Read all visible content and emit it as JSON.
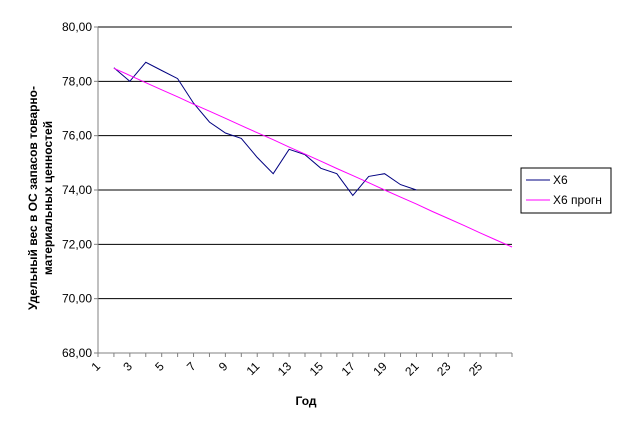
{
  "chart_data": {
    "type": "line",
    "title": "",
    "xlabel": "Год",
    "ylabel": "Удельный вес в ОС запасов товарно-материальных ценностей",
    "ylabel_lines": [
      "Удельный вес в ОС запасов товарно-",
      "материальных ценностей"
    ],
    "xlim": [
      1,
      27
    ],
    "ylim": [
      68,
      80
    ],
    "y_ticks": [
      "68,00",
      "70,00",
      "72,00",
      "74,00",
      "76,00",
      "78,00",
      "80,00"
    ],
    "x_tick_labels": [
      "1",
      "3",
      "5",
      "7",
      "9",
      "11",
      "13",
      "15",
      "17",
      "19",
      "21",
      "23",
      "25"
    ],
    "grid": "horizontal",
    "legend_position": "right",
    "series": [
      {
        "name": "X6",
        "color": "#000080",
        "x": [
          2,
          3,
          4,
          5,
          6,
          7,
          8,
          9,
          10,
          11,
          12,
          13,
          14,
          15,
          16,
          17,
          18,
          19,
          20,
          21
        ],
        "values": [
          78.5,
          78.0,
          78.7,
          78.4,
          78.1,
          77.2,
          76.5,
          76.1,
          75.9,
          75.2,
          74.6,
          75.5,
          75.3,
          74.8,
          74.6,
          73.8,
          74.5,
          74.6,
          74.2,
          74.0
        ]
      },
      {
        "name": "X6 прогн",
        "color": "#ff00ff",
        "x": [
          2,
          3,
          4,
          5,
          6,
          7,
          8,
          9,
          10,
          11,
          12,
          13,
          14,
          15,
          16,
          17,
          18,
          19,
          20,
          21,
          22,
          23,
          24,
          25,
          26,
          27
        ],
        "values": [
          78.48,
          78.22,
          77.95,
          77.69,
          77.43,
          77.16,
          76.9,
          76.64,
          76.37,
          76.11,
          75.85,
          75.58,
          75.32,
          75.06,
          74.79,
          74.53,
          74.27,
          74.0,
          73.74,
          73.48,
          73.21,
          72.95,
          72.69,
          72.42,
          72.16,
          71.9
        ]
      }
    ]
  }
}
